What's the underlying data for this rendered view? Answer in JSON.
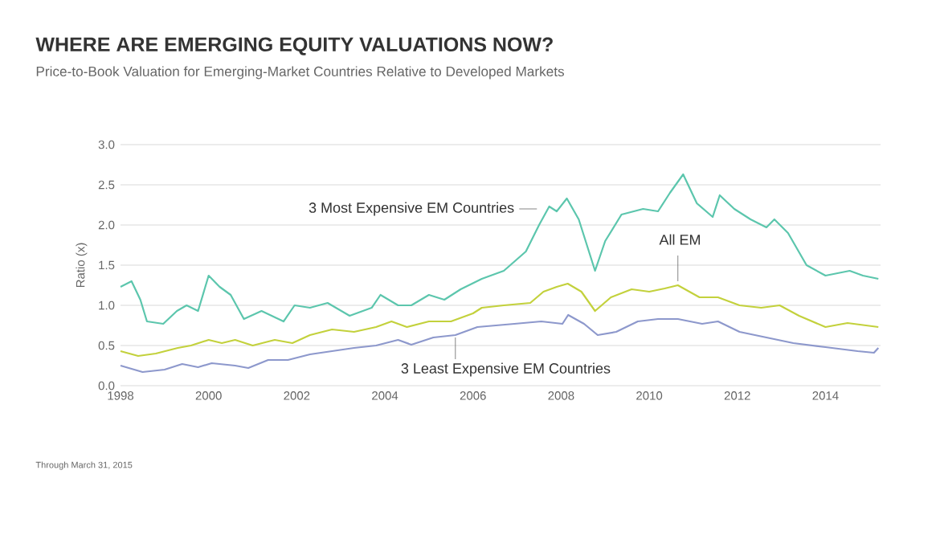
{
  "chart_data": {
    "type": "line",
    "title": "WHERE ARE EMERGING EQUITY VALUATIONS NOW?",
    "subtitle": "Price-to-Book Valuation for Emerging-Market Countries Relative to Developed Markets",
    "ylabel": "Ratio (x)",
    "annotations": [
      "Through March 31, 2015"
    ],
    "xlim": [
      1998,
      2015.25
    ],
    "ylim": [
      0,
      3
    ],
    "xticks": [
      1998,
      2000,
      2002,
      2004,
      2006,
      2008,
      2010,
      2012,
      2014
    ],
    "yticks": [
      {
        "value": 0,
        "label": "0.0"
      },
      {
        "value": 0.5,
        "label": "0.5"
      },
      {
        "value": 1,
        "label": "1.0"
      },
      {
        "value": 1.5,
        "label": "1.5"
      },
      {
        "value": 2,
        "label": "2.0"
      },
      {
        "value": 2.5,
        "label": "2.5"
      },
      {
        "value": 3,
        "label": "3.0"
      }
    ],
    "grid": "y",
    "series": [
      {
        "name": "3 Most Expensive EM Countries",
        "color": "#5cc6ad",
        "x": [
          1998.0,
          1998.25,
          1998.45,
          1998.6,
          1998.97,
          1999.28,
          1999.5,
          1999.76,
          2000.0,
          2000.25,
          2000.5,
          2000.8,
          2001.2,
          2001.7,
          2001.95,
          2002.3,
          2002.7,
          2003.2,
          2003.7,
          2003.9,
          2004.3,
          2004.6,
          2005.0,
          2005.35,
          2005.72,
          2006.2,
          2006.7,
          2007.2,
          2007.5,
          2007.73,
          2007.9,
          2008.13,
          2008.4,
          2008.77,
          2009.0,
          2009.37,
          2009.86,
          2010.2,
          2010.47,
          2010.77,
          2011.08,
          2011.44,
          2011.6,
          2011.93,
          2012.3,
          2012.66,
          2012.84,
          2013.15,
          2013.57,
          2014.0,
          2014.55,
          2014.85,
          2015.2
        ],
        "values": [
          1.23,
          1.3,
          1.07,
          0.8,
          0.77,
          0.93,
          1.0,
          0.93,
          1.37,
          1.23,
          1.13,
          0.83,
          0.93,
          0.8,
          1.0,
          0.97,
          1.03,
          0.87,
          0.97,
          1.13,
          1.0,
          1.0,
          1.13,
          1.07,
          1.2,
          1.33,
          1.43,
          1.67,
          2.0,
          2.23,
          2.17,
          2.33,
          2.07,
          1.43,
          1.8,
          2.13,
          2.2,
          2.17,
          2.4,
          2.63,
          2.27,
          2.1,
          2.37,
          2.2,
          2.07,
          1.97,
          2.07,
          1.9,
          1.5,
          1.37,
          1.43,
          1.37,
          1.33
        ]
      },
      {
        "name": "All EM",
        "color": "#c3d13c",
        "x": [
          1998.0,
          1998.4,
          1998.8,
          1999.3,
          1999.6,
          2000.0,
          2000.3,
          2000.6,
          2001.0,
          2001.5,
          2001.9,
          2002.3,
          2002.8,
          2003.3,
          2003.8,
          2004.15,
          2004.5,
          2005.0,
          2005.5,
          2006.0,
          2006.2,
          2006.7,
          2007.3,
          2007.6,
          2007.9,
          2008.15,
          2008.46,
          2008.77,
          2009.13,
          2009.6,
          2010.0,
          2010.35,
          2010.65,
          2011.14,
          2011.56,
          2012.05,
          2012.54,
          2012.96,
          2013.4,
          2014.0,
          2014.5,
          2015.2
        ],
        "values": [
          0.43,
          0.37,
          0.4,
          0.47,
          0.5,
          0.57,
          0.53,
          0.57,
          0.5,
          0.57,
          0.53,
          0.63,
          0.7,
          0.67,
          0.73,
          0.8,
          0.73,
          0.8,
          0.8,
          0.9,
          0.97,
          1.0,
          1.03,
          1.17,
          1.23,
          1.27,
          1.17,
          0.93,
          1.1,
          1.2,
          1.17,
          1.21,
          1.25,
          1.1,
          1.1,
          1.0,
          0.97,
          1.0,
          0.87,
          0.73,
          0.78,
          0.73
        ]
      },
      {
        "name": "3 Least Expensive EM Countries",
        "color": "#8d98cc",
        "x": [
          1998.0,
          1998.5,
          1999.0,
          1999.4,
          1999.76,
          2000.07,
          2000.6,
          2000.9,
          2001.35,
          2001.8,
          2002.3,
          2002.8,
          2003.3,
          2003.8,
          2004.3,
          2004.6,
          2005.1,
          2005.6,
          2006.1,
          2006.94,
          2007.55,
          2008.03,
          2008.16,
          2008.52,
          2008.83,
          2009.25,
          2009.74,
          2010.2,
          2010.65,
          2011.2,
          2011.56,
          2012.05,
          2012.66,
          2013.27,
          2014.0,
          2014.73,
          2015.1,
          2015.2
        ],
        "values": [
          0.25,
          0.17,
          0.2,
          0.27,
          0.23,
          0.28,
          0.25,
          0.22,
          0.32,
          0.32,
          0.39,
          0.43,
          0.47,
          0.5,
          0.57,
          0.51,
          0.6,
          0.63,
          0.73,
          0.77,
          0.8,
          0.77,
          0.88,
          0.77,
          0.63,
          0.67,
          0.8,
          0.83,
          0.83,
          0.77,
          0.8,
          0.67,
          0.6,
          0.53,
          0.48,
          0.43,
          0.41,
          0.47
        ]
      }
    ]
  }
}
